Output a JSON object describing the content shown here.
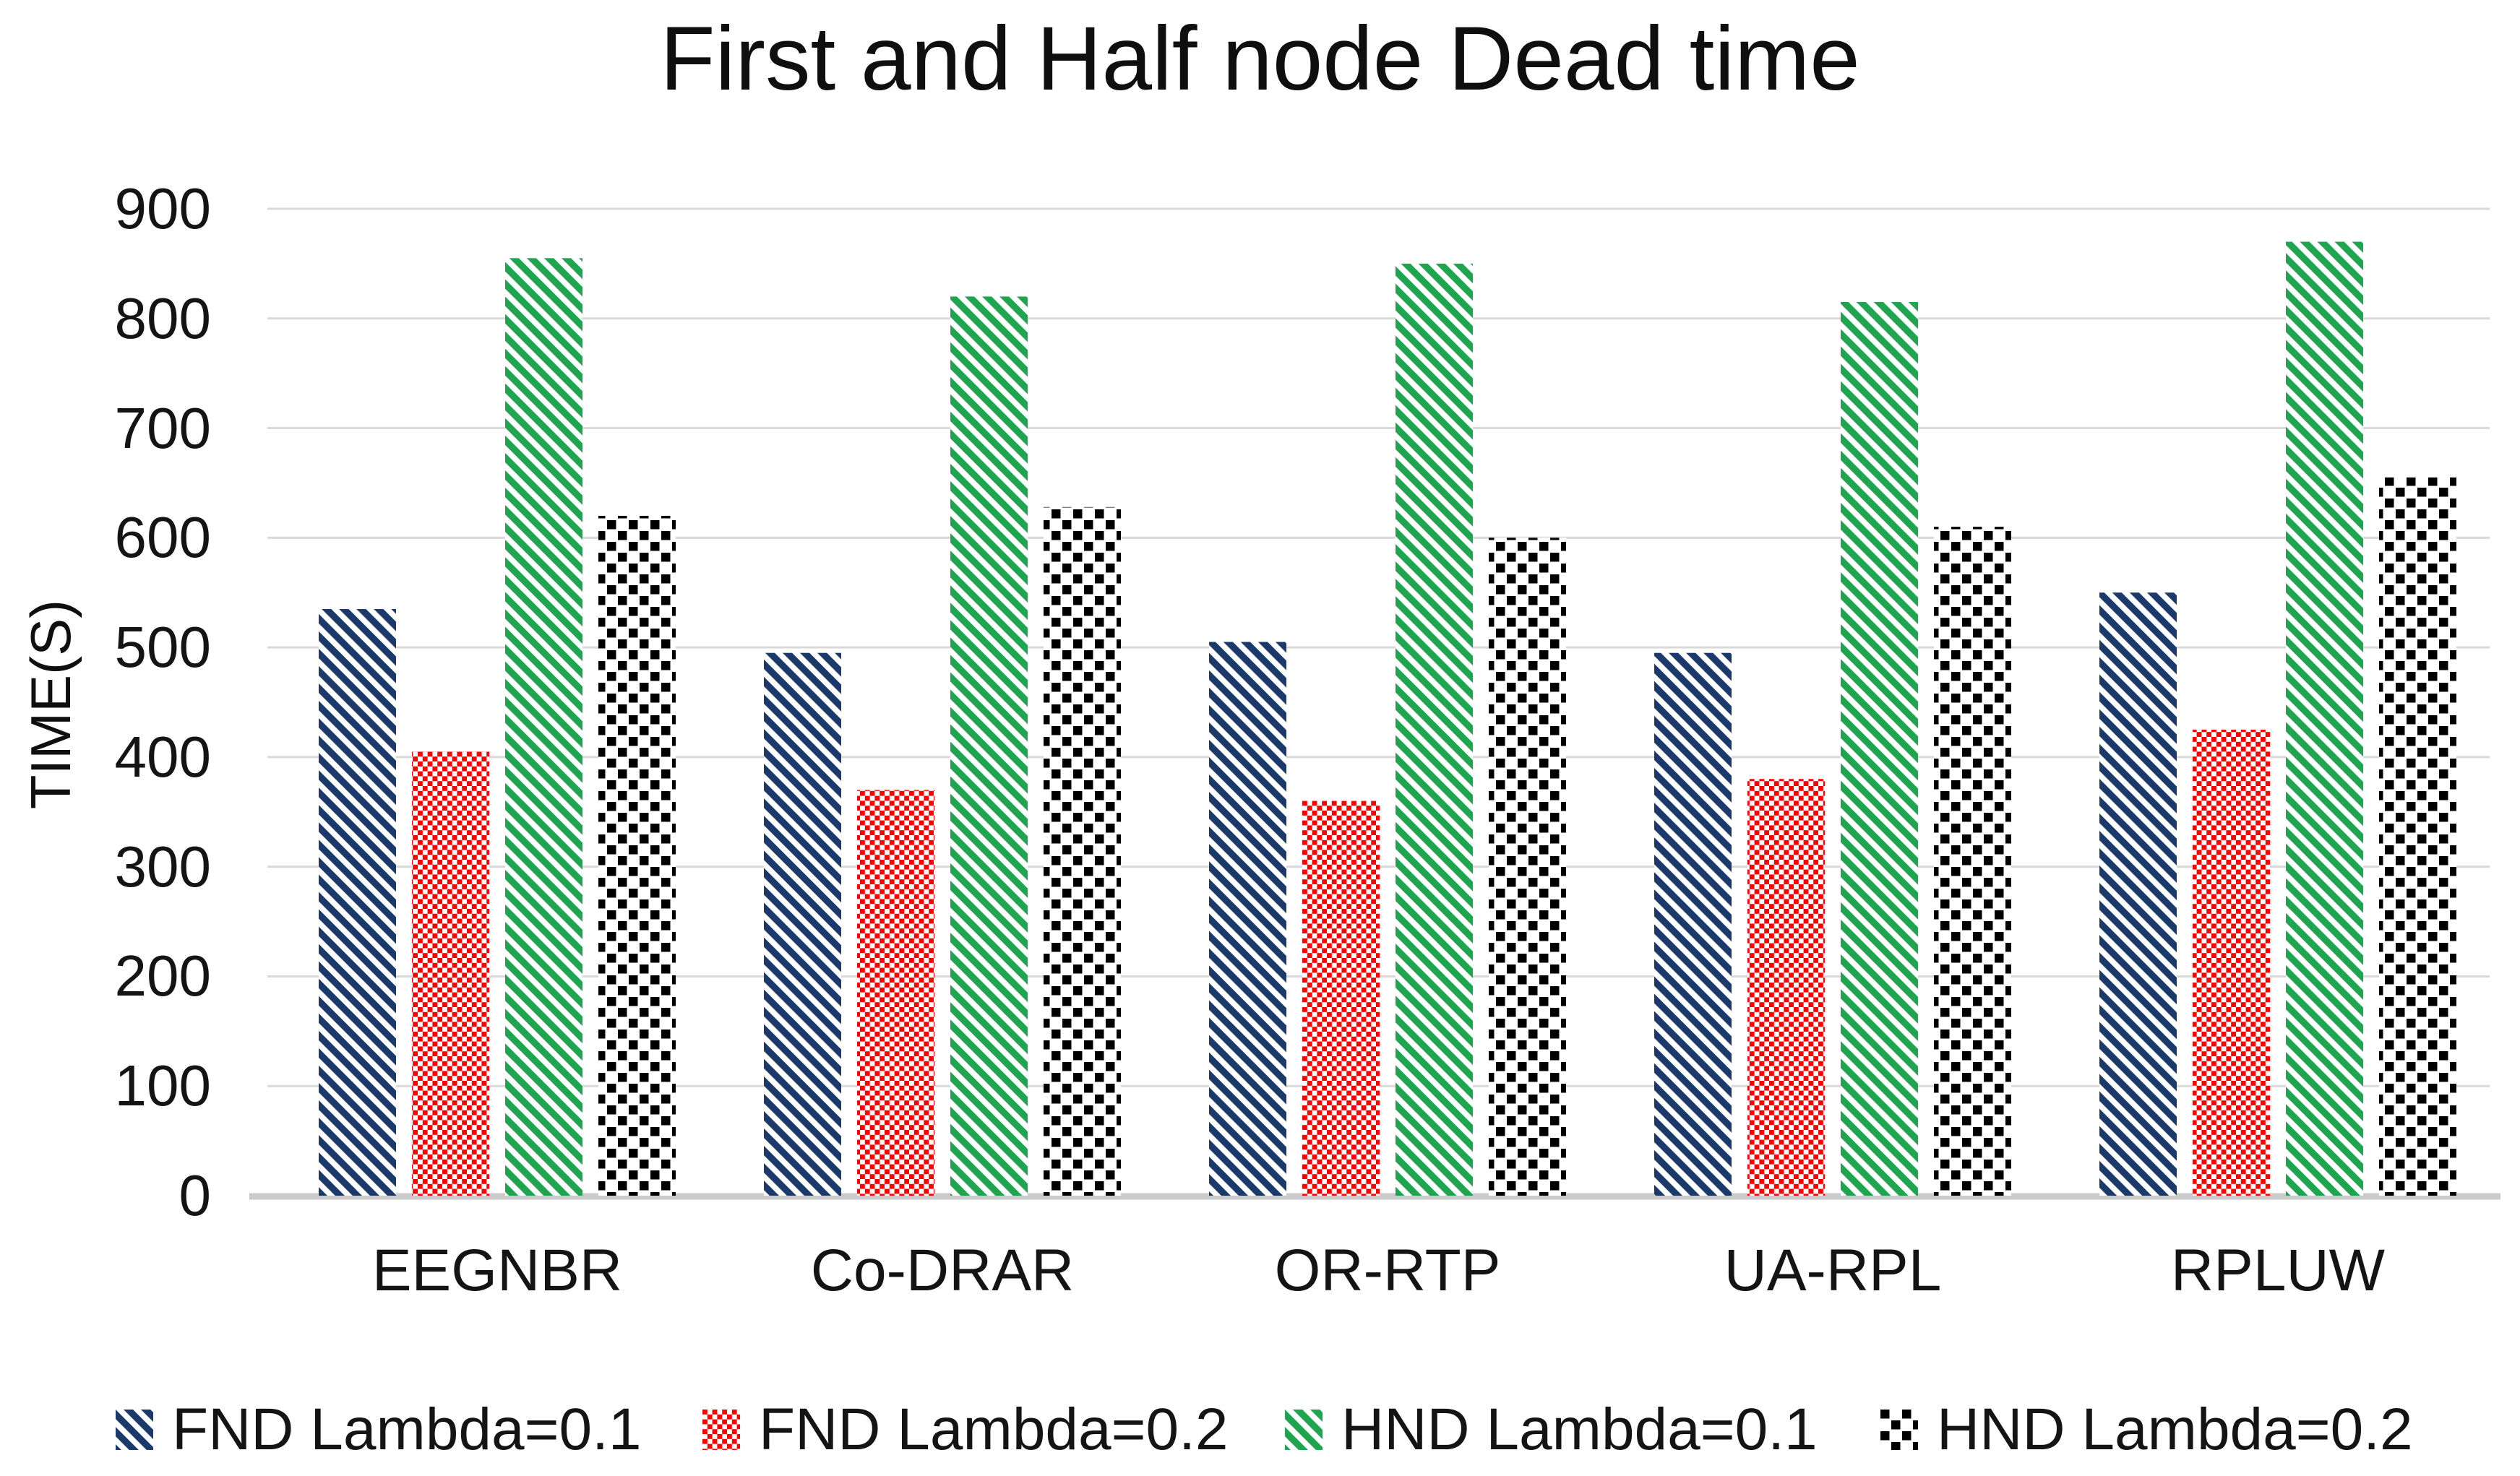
{
  "chart_data": {
    "type": "bar",
    "title": "First and Half node Dead time",
    "ylabel": "TIME(S)",
    "xlabel": "",
    "categories": [
      "EEGNBR",
      "Co-DRAR",
      "OR-RTP",
      "UA-RPL",
      "RPLUW"
    ],
    "series": [
      {
        "name": "FND Lambda=0.1",
        "color": "#1B3A6B",
        "pattern": "diagonal-stripes",
        "values": [
          535,
          495,
          505,
          495,
          550
        ]
      },
      {
        "name": "FND Lambda=0.2",
        "color": "#FF0000",
        "pattern": "checkerboard",
        "values": [
          405,
          370,
          360,
          380,
          425
        ]
      },
      {
        "name": "HND Lambda=0.1",
        "color": "#1FA550",
        "pattern": "diagonal-stripes",
        "values": [
          855,
          820,
          850,
          815,
          870
        ]
      },
      {
        "name": "HND Lambda=0.2",
        "color": "#000000",
        "pattern": "offset-checker",
        "values": [
          620,
          628,
          600,
          610,
          655
        ]
      }
    ],
    "ylim": [
      0,
      900
    ],
    "ytick_step": 100,
    "yticks": [
      "0",
      "100",
      "200",
      "300",
      "400",
      "500",
      "600",
      "700",
      "800",
      "900"
    ],
    "grid": "horizontal",
    "legend_position": "bottom",
    "background": "#FFFFFF",
    "gridline_color": "#D9D9D9",
    "axis_line_color": "#CBCBCB",
    "text_color": "#141414"
  }
}
